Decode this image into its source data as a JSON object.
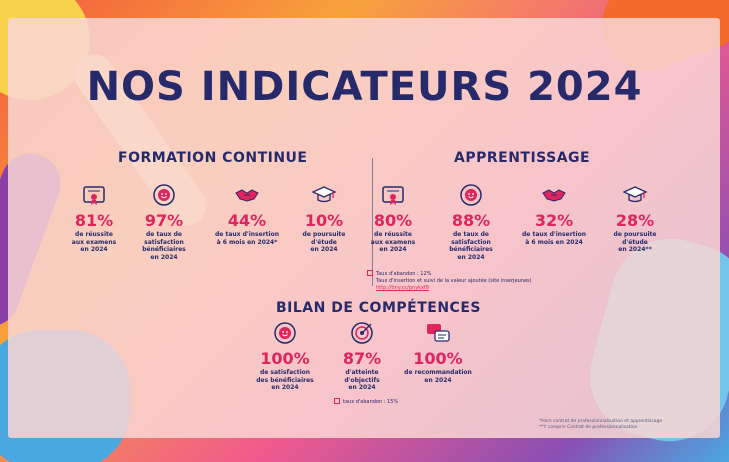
{
  "title": "NOS INDICATEURS 2024",
  "colors": {
    "navy": "#262a6b",
    "accent": "#e0245e"
  },
  "formation": {
    "title": "FORMATION CONTINUE",
    "items": [
      {
        "icon": "certificate-icon",
        "value": "81%",
        "caption": [
          "de réussite",
          "aux examens",
          "en 2024"
        ]
      },
      {
        "icon": "satisfaction-gauge-icon",
        "value": "97%",
        "caption": [
          "de taux de",
          "satisfaction",
          "bénéficiaires",
          "en 2024"
        ]
      },
      {
        "icon": "handshake-icon",
        "value": "44%",
        "caption": [
          "de taux d'insertion",
          "à 6 mois en 2024*"
        ]
      },
      {
        "icon": "graduation-cap-icon",
        "value": "10%",
        "caption": [
          "de poursuite",
          "d'étude",
          "en 2024"
        ]
      }
    ]
  },
  "apprentissage": {
    "title": "APPRENTISSAGE",
    "items": [
      {
        "icon": "certificate-icon",
        "value": "80%",
        "caption": [
          "de réussite",
          "aux examens",
          "en 2024"
        ]
      },
      {
        "icon": "satisfaction-gauge-icon",
        "value": "88%",
        "caption": [
          "de taux de",
          "satisfaction",
          "bénéficiaires",
          "en 2024"
        ]
      },
      {
        "icon": "handshake-icon",
        "value": "32%",
        "caption": [
          "de taux d'insertion",
          "à 6 mois en 2024"
        ]
      },
      {
        "icon": "graduation-cap-icon",
        "value": "28%",
        "caption": [
          "de poursuite",
          "d'étude",
          "en 2024**"
        ]
      }
    ],
    "notes": {
      "abandon": "Taux d'abandon : 12%",
      "insertion": "Taux d'insertion et suivi de la valeur ajoutée (site inserjeunes)",
      "link": "http://tiny.cc/pnykxf9"
    }
  },
  "bilan": {
    "title": "BILAN DE COMPÉTENCES",
    "items": [
      {
        "icon": "satisfaction-gauge-icon",
        "value": "100%",
        "caption": [
          "de satisfaction",
          "des bénéficiaires",
          "en 2024"
        ]
      },
      {
        "icon": "target-icon",
        "value": "87%",
        "caption": [
          "d'atteinte",
          "d'objectifs",
          "en 2024"
        ]
      },
      {
        "icon": "chat-bubbles-icon",
        "value": "100%",
        "caption": [
          "de recommandation",
          "en 2024"
        ]
      }
    ],
    "note": "taux d'abandon : 15%"
  },
  "footnotes": [
    "*Hors contrat de professionnalisation et apprentissage",
    "**Y compris Contrat de professionnalisation"
  ]
}
